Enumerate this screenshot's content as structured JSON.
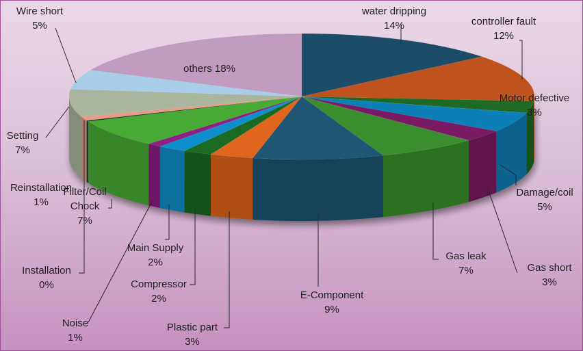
{
  "chart_data": {
    "type": "pie",
    "style": "3d-exploded-perspective",
    "slices": [
      {
        "name": "water dripping",
        "label": "water dripping",
        "pct_label": "14%",
        "value": 14,
        "color": "#1d4c68"
      },
      {
        "name": "controller fault",
        "label": "controller fault",
        "pct_label": "12%",
        "value": 12,
        "color": "#c0521d"
      },
      {
        "name": "Motor defective",
        "label": "Motor defective",
        "pct_label": "3%",
        "value": 3,
        "color": "#1f6b26"
      },
      {
        "name": "Damage/coil",
        "label": "Damage/coil",
        "pct_label": "5%",
        "value": 5,
        "color": "#0b7fb6"
      },
      {
        "name": "Gas short",
        "label": "Gas short",
        "pct_label": "3%",
        "value": 3,
        "color": "#7b1a64"
      },
      {
        "name": "Gas leak",
        "label": "Gas leak",
        "pct_label": "7%",
        "value": 7,
        "color": "#3b8e2e"
      },
      {
        "name": "E-Component",
        "label": "E-Component",
        "pct_label": "9%",
        "value": 9,
        "color": "#1f5674"
      },
      {
        "name": "Plastic part",
        "label": "Plastic part",
        "pct_label": "3%",
        "value": 3,
        "color": "#e0661e"
      },
      {
        "name": "Compressor",
        "label": "Compressor",
        "pct_label": "2%",
        "value": 2,
        "color": "#1b6a23"
      },
      {
        "name": "Main Supply",
        "label": "Main Supply",
        "pct_label": "2%",
        "value": 2,
        "color": "#0e8fcc"
      },
      {
        "name": "Noise",
        "label": "Noise",
        "pct_label": "1%",
        "value": 1,
        "color": "#8e1f84"
      },
      {
        "name": "Filter/Coil Chock",
        "label": "Filter/Coil\nChock",
        "pct_label": "7%",
        "value": 7,
        "color": "#46aa34"
      },
      {
        "name": "Installation",
        "label": "Installation",
        "pct_label": "0%",
        "value": 0.3,
        "color": "#1b4d29"
      },
      {
        "name": "Reinstallation",
        "label": "Reinstallation",
        "pct_label": "1%",
        "value": 1,
        "color": "#e99a86"
      },
      {
        "name": "Setting",
        "label": "Setting",
        "pct_label": "7%",
        "value": 7,
        "color": "#a9b59c"
      },
      {
        "name": "Wire short",
        "label": "Wire short",
        "pct_label": "5%",
        "value": 5,
        "color": "#a8cde8"
      },
      {
        "name": "others",
        "label": "others 18%",
        "pct_label": "",
        "value": 18,
        "color": "#c19cc0"
      }
    ],
    "legend": "none",
    "data_labels": "outside-with-leader-lines"
  }
}
